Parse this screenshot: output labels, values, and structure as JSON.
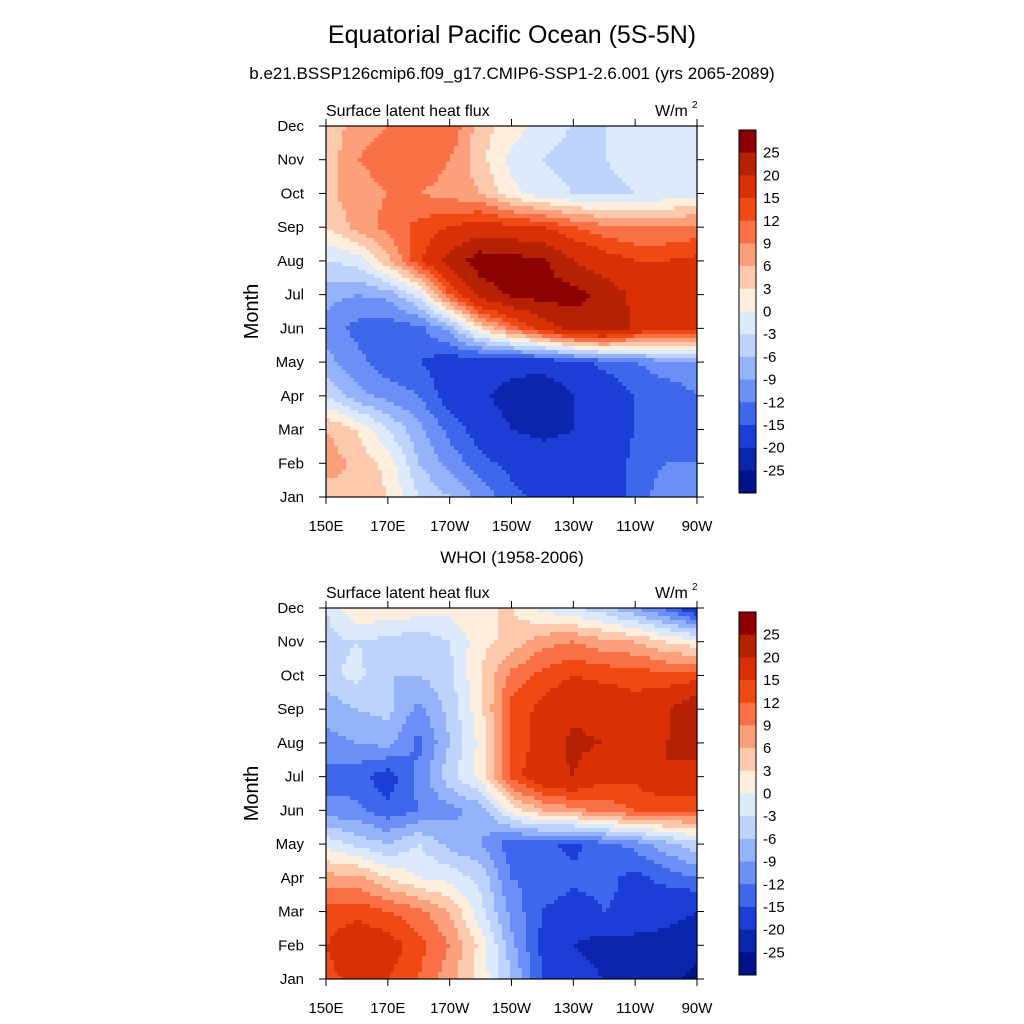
{
  "title": "Equatorial Pacific Ocean (5S-5N)",
  "subtitle": "b.e21.BSSP126cmip6.f09_g17.CMIP6-SSP1-2.6.001 (yrs 2065-2089)",
  "colorbar": {
    "levels": [
      "25",
      "20",
      "15",
      "12",
      "9",
      "6",
      "3",
      "0",
      "-3",
      "-6",
      "-9",
      "-12",
      "-15",
      "-20",
      "-25"
    ],
    "colors": [
      "#8b0000",
      "#b52102",
      "#d93006",
      "#f04a14",
      "#f97046",
      "#fca07c",
      "#fdc9ac",
      "#fdeedd",
      "#dceafb",
      "#bdd3fb",
      "#94b3fb",
      "#6b8ff6",
      "#3f67ec",
      "#1c3ed7",
      "#0c25ad",
      "#00128a"
    ]
  },
  "chart_data": [
    {
      "type": "heatmap",
      "panel_title": "",
      "left_label": "Surface latent heat flux",
      "units": "W/m",
      "units_superscript": "2",
      "ylabel": "Month",
      "x_ticks": [
        "150E",
        "170E",
        "170W",
        "150W",
        "130W",
        "110W",
        "90W"
      ],
      "y_ticks": [
        "Jan",
        "Feb",
        "Mar",
        "Apr",
        "May",
        "Jun",
        "Jul",
        "Aug",
        "Sep",
        "Oct",
        "Nov",
        "Dec"
      ],
      "x_lon": [
        150,
        160,
        170,
        180,
        190,
        200,
        210,
        220,
        230,
        240,
        250,
        260,
        270
      ],
      "months": [
        "Jan",
        "Feb",
        "Mar",
        "Apr",
        "May",
        "Jun",
        "Jul",
        "Aug",
        "Sep",
        "Oct",
        "Nov",
        "Dec"
      ],
      "values": [
        [
          4,
          6,
          3,
          -3,
          -6,
          -10,
          -14,
          -16,
          -16,
          -17,
          -14,
          -10,
          -12
        ],
        [
          8,
          5,
          2,
          -6,
          -10,
          -14,
          -16,
          -18,
          -18,
          -18,
          -14,
          -12,
          -12
        ],
        [
          6,
          3,
          -3,
          -8,
          -13,
          -17,
          -20,
          -21,
          -20,
          -17,
          -15,
          -14,
          -12
        ],
        [
          -3,
          -8,
          -10,
          -12,
          -17,
          -19,
          -22,
          -24,
          -20,
          -18,
          -15,
          -14,
          -12
        ],
        [
          -8,
          -11,
          -14,
          -15,
          -17,
          -18,
          -18,
          -18,
          -16,
          -14,
          -12,
          -10,
          -10
        ],
        [
          -10,
          -13,
          -14,
          -13,
          -8,
          3,
          10,
          17,
          22,
          24,
          19,
          16,
          16
        ],
        [
          -8,
          -9,
          -8,
          -2,
          12,
          22,
          26,
          27,
          27,
          23,
          19,
          16,
          16
        ],
        [
          -3,
          -2,
          5,
          14,
          22,
          28,
          27,
          26,
          20,
          17,
          15,
          15,
          16
        ],
        [
          3,
          7,
          10,
          13,
          15,
          17,
          16,
          15,
          12,
          10,
          9,
          9,
          10
        ],
        [
          5,
          8,
          9,
          9,
          8,
          6,
          1,
          -2,
          -3,
          -4,
          -3,
          -2,
          -1
        ],
        [
          4,
          9,
          10,
          11,
          9,
          4,
          -1,
          -3,
          -4,
          -3,
          -2,
          -1,
          0
        ],
        [
          3,
          8,
          9,
          12,
          12,
          4,
          2,
          -2,
          -3,
          -3,
          -2,
          -1,
          0
        ]
      ]
    },
    {
      "type": "heatmap",
      "panel_title": "WHOI (1958-2006)",
      "left_label": "Surface latent heat flux",
      "units": "W/m",
      "units_superscript": "2",
      "ylabel": "Month",
      "x_ticks": [
        "150E",
        "170E",
        "170W",
        "150W",
        "130W",
        "110W",
        "90W"
      ],
      "y_ticks": [
        "Jan",
        "Feb",
        "Mar",
        "Apr",
        "May",
        "Jun",
        "Jul",
        "Aug",
        "Sep",
        "Oct",
        "Nov",
        "Dec"
      ],
      "x_lon": [
        150,
        160,
        170,
        180,
        190,
        200,
        210,
        220,
        230,
        240,
        250,
        260,
        270
      ],
      "months": [
        "Jan",
        "Feb",
        "Mar",
        "Apr",
        "May",
        "Jun",
        "Jul",
        "Aug",
        "Sep",
        "Oct",
        "Nov",
        "Dec"
      ],
      "values": [
        [
          14,
          16,
          15,
          12,
          7,
          2,
          -6,
          -15,
          -18,
          -20,
          -22,
          -24,
          -26
        ],
        [
          15,
          18,
          17,
          13,
          9,
          2,
          -8,
          -16,
          -20,
          -22,
          -22,
          -22,
          -24
        ],
        [
          13,
          14,
          12,
          10,
          6,
          -2,
          -10,
          -15,
          -17,
          -15,
          -16,
          -18,
          -20
        ],
        [
          7,
          7,
          3,
          0,
          -1,
          -4,
          -12,
          -13,
          -14,
          -14,
          -16,
          -14,
          -12
        ],
        [
          -1,
          -4,
          -6,
          -3,
          -7,
          -9,
          -14,
          -14,
          -16,
          -13,
          -11,
          -7,
          -4
        ],
        [
          -11,
          -11,
          -14,
          -12,
          -10,
          -8,
          1,
          6,
          8,
          10,
          12,
          12,
          12
        ],
        [
          -13,
          -14,
          -17,
          -11,
          -4,
          1,
          13,
          19,
          20,
          16,
          16,
          20,
          19
        ],
        [
          -10,
          -9,
          -8,
          -13,
          -6,
          1,
          12,
          17,
          21,
          20,
          18,
          20,
          21
        ],
        [
          -8,
          -6,
          -5,
          -10,
          -5,
          2,
          13,
          16,
          19,
          18,
          16,
          19,
          25
        ],
        [
          -4,
          -2,
          -6,
          -6,
          -4,
          3,
          10,
          13,
          15,
          14,
          14,
          13,
          13
        ],
        [
          -4,
          -3,
          -4,
          -5,
          -3,
          2,
          4,
          8,
          9,
          7,
          6,
          3,
          1
        ],
        [
          -3,
          3,
          2,
          2,
          1,
          3,
          3,
          -1,
          -3,
          -5,
          -9,
          -13,
          -19
        ]
      ]
    }
  ]
}
